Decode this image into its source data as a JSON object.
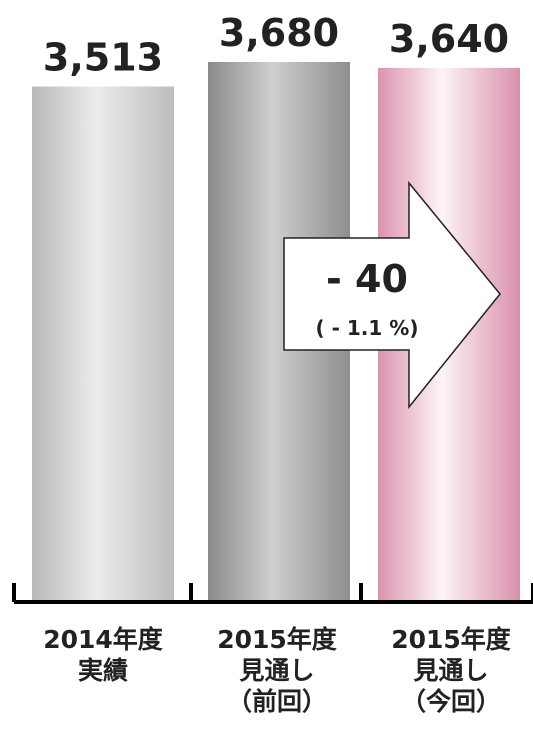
{
  "chart_data": {
    "type": "bar",
    "categories": [
      [
        "2014年度",
        "実績"
      ],
      [
        "2015年度",
        "見通し",
        "（前回）"
      ],
      [
        "2015年度",
        "見通し",
        "（今回）"
      ]
    ],
    "values": [
      3513,
      3680,
      3640
    ],
    "value_labels": [
      "3,513",
      "3,680",
      "3,640"
    ],
    "ylim": [
      0,
      3680
    ],
    "grid": false,
    "axis_visible": "x-only",
    "bar_colors": [
      "#c8c8c8",
      "#9c9c9c",
      "#e3a6be"
    ],
    "annotation": {
      "type": "arrow",
      "from_category": 1,
      "to_category": 2,
      "main": "- 40",
      "sub": "( - 1.1 %)"
    }
  }
}
